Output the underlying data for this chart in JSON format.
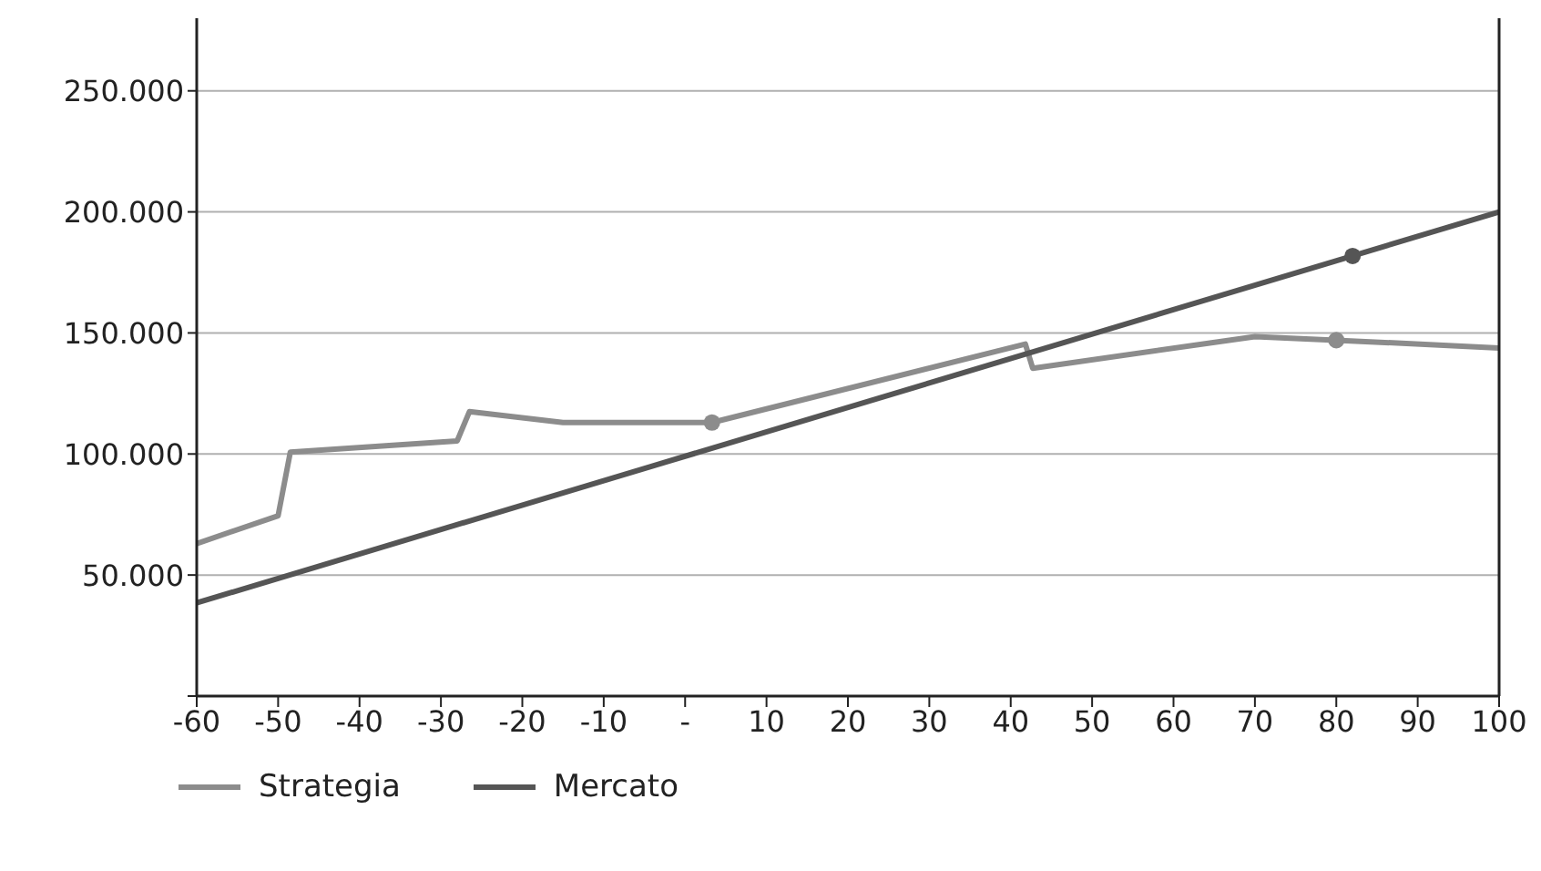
{
  "chart_data": {
    "type": "line",
    "xlim": [
      -60,
      100
    ],
    "xticks": [
      -60,
      -50,
      -40,
      -30,
      -20,
      -10,
      {
        "value": 0,
        "label": "-"
      },
      10,
      20,
      30,
      40,
      50,
      60,
      70,
      80,
      90,
      100
    ],
    "ylim": [
      0,
      280000
    ],
    "yticks": [
      {
        "value": 0,
        "label": null
      },
      {
        "value": 50000,
        "label": "50.000"
      },
      {
        "value": 100000,
        "label": "100.000"
      },
      {
        "value": 150000,
        "label": "150.000"
      },
      {
        "value": 200000,
        "label": "200.000"
      },
      {
        "value": 250000,
        "label": "250.000"
      }
    ],
    "grid": "y",
    "legend": "bottom left",
    "series": [
      {
        "name": "Strategia",
        "color": "#8c8c8c",
        "x": [
          -60,
          -50,
          -48.5,
          -28,
          -26.5,
          -15,
          3.3,
          41.8,
          42.7,
          70,
          80,
          100
        ],
        "values": [
          63000,
          74500,
          100800,
          105400,
          117500,
          113000,
          113000,
          145400,
          135400,
          148500,
          147000,
          143800
        ]
      },
      {
        "name": "Mercato",
        "color": "#555555",
        "x": [
          -60,
          100
        ],
        "values": [
          38500,
          200000
        ]
      },
      {
        "type": "scatter",
        "color": "#8c8c8c",
        "marker": "circle",
        "x": [
          3.3,
          80
        ],
        "values": [
          113000,
          147000
        ]
      },
      {
        "type": "scatter",
        "color": "#555555",
        "marker": "circle",
        "x": [
          82
        ],
        "values": [
          181800
        ]
      }
    ]
  }
}
